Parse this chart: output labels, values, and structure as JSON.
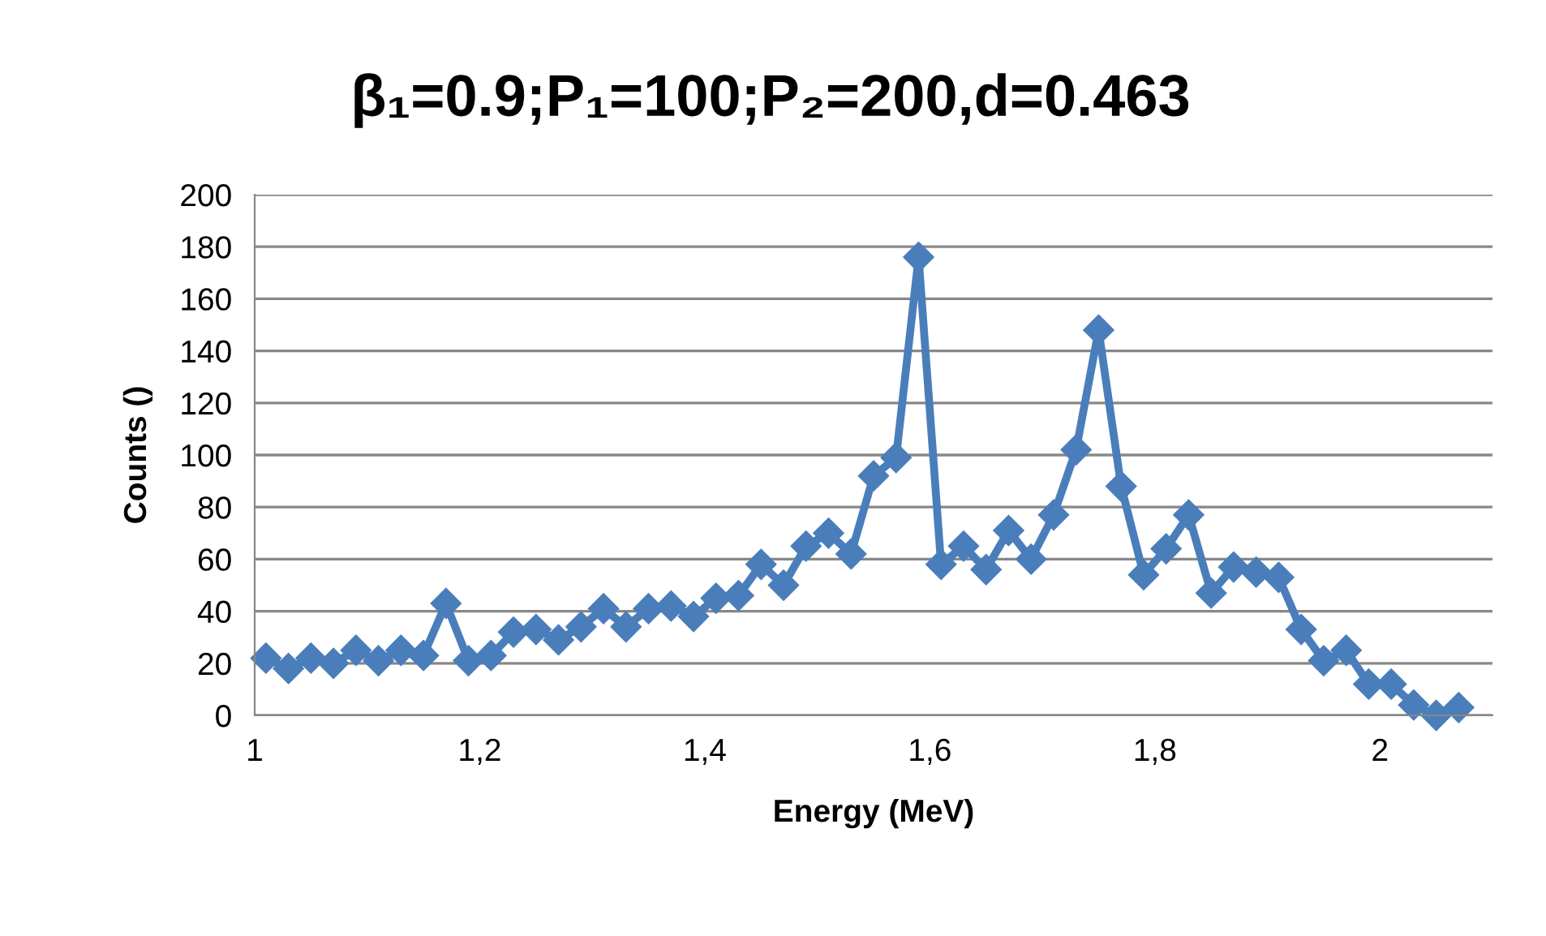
{
  "chart_data": {
    "type": "line",
    "title": "β₁=0.9;P₁=100;P₂=200,d=0.463",
    "xlabel": "Energy (MeV)",
    "ylabel": "Counts ()",
    "x": [
      1.01,
      1.03,
      1.05,
      1.07,
      1.09,
      1.11,
      1.13,
      1.15,
      1.17,
      1.19,
      1.21,
      1.23,
      1.25,
      1.27,
      1.29,
      1.31,
      1.33,
      1.35,
      1.37,
      1.39,
      1.41,
      1.43,
      1.45,
      1.47,
      1.49,
      1.51,
      1.53,
      1.55,
      1.57,
      1.59,
      1.61,
      1.63,
      1.65,
      1.67,
      1.69,
      1.71,
      1.73,
      1.75,
      1.77,
      1.79,
      1.81,
      1.83,
      1.85,
      1.87,
      1.89,
      1.91,
      1.93,
      1.95,
      1.97,
      1.99,
      2.01,
      2.03,
      2.05,
      2.07
    ],
    "series": [
      {
        "color": "#4a7ebb",
        "values": [
          22,
          18,
          22,
          20,
          25,
          21,
          25,
          23,
          43,
          21,
          23,
          32,
          33,
          29,
          34,
          41,
          34,
          41,
          42,
          38,
          45,
          46,
          58,
          50,
          65,
          70,
          62,
          92,
          99,
          176,
          58,
          65,
          56,
          71,
          60,
          77,
          102,
          148,
          88,
          54,
          64,
          77,
          47,
          57,
          55,
          53,
          33,
          21,
          25,
          12,
          12,
          4,
          0,
          3
        ]
      }
    ],
    "xlim": [
      1,
      2.1
    ],
    "xticks": [
      1,
      {
        "value": 1.2,
        "label": "1,2"
      },
      {
        "value": 1.4,
        "label": "1,4"
      },
      {
        "value": 1.6,
        "label": "1,6"
      },
      {
        "value": 1.8,
        "label": "1,8"
      },
      2
    ],
    "ylim": [
      0,
      200
    ],
    "yticks": [
      0,
      20,
      40,
      60,
      80,
      100,
      120,
      140,
      160,
      180,
      200
    ],
    "grid": "y",
    "marker": "diamond",
    "line_style": "solid",
    "legend": false
  }
}
